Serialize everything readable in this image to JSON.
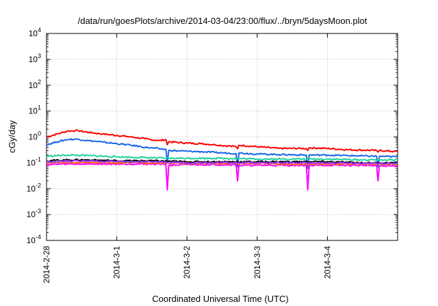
{
  "chart_data": {
    "type": "line",
    "title": "/data/run/goesPlots/archive/2014-03-04/23:00/flux/../bryn/5daysMoon.plot",
    "xlabel": "Coordinated Universal Time (UTC)",
    "ylabel": "cGy/day",
    "yscale": "log",
    "ylim": [
      0.0001,
      10000
    ],
    "xlim": [
      0,
      5
    ],
    "grid": true,
    "x_ticks": [
      {
        "x": 0,
        "label": "2014-2-28"
      },
      {
        "x": 1,
        "label": "2014-3-1"
      },
      {
        "x": 2,
        "label": "2014-3-2"
      },
      {
        "x": 3,
        "label": "2014-3-3"
      },
      {
        "x": 4,
        "label": "2014-3-4"
      }
    ],
    "y_ticks": [
      {
        "value": 0.0001,
        "base": "10",
        "exp": "-4"
      },
      {
        "value": 0.001,
        "base": "10",
        "exp": "-3"
      },
      {
        "value": 0.01,
        "base": "10",
        "exp": "-2"
      },
      {
        "value": 0.1,
        "base": "10",
        "exp": "-1"
      },
      {
        "value": 1,
        "base": "10",
        "exp": "0"
      },
      {
        "value": 10,
        "base": "10",
        "exp": "1"
      },
      {
        "value": 100,
        "base": "10",
        "exp": "2"
      },
      {
        "value": 1000,
        "base": "10",
        "exp": "3"
      },
      {
        "value": 10000,
        "base": "10",
        "exp": "4"
      }
    ],
    "series": [
      {
        "color": "#ff0000",
        "points": [
          [
            0,
            1.0
          ],
          [
            0.15,
            1.3
          ],
          [
            0.3,
            1.7
          ],
          [
            0.45,
            1.75
          ],
          [
            0.6,
            1.5
          ],
          [
            0.8,
            1.3
          ],
          [
            1.0,
            1.15
          ],
          [
            1.2,
            1.0
          ],
          [
            1.4,
            0.85
          ],
          [
            1.6,
            0.72
          ],
          [
            1.7,
            0.8
          ],
          [
            1.72,
            0.5
          ],
          [
            1.74,
            0.65
          ],
          [
            2.0,
            0.58
          ],
          [
            2.2,
            0.55
          ],
          [
            2.4,
            0.5
          ],
          [
            2.7,
            0.42
          ],
          [
            2.72,
            0.35
          ],
          [
            2.74,
            0.48
          ],
          [
            3.0,
            0.42
          ],
          [
            3.3,
            0.36
          ],
          [
            3.7,
            0.36
          ],
          [
            3.72,
            0.3
          ],
          [
            3.74,
            0.38
          ],
          [
            4.0,
            0.36
          ],
          [
            4.3,
            0.32
          ],
          [
            4.7,
            0.3
          ],
          [
            4.72,
            0.26
          ],
          [
            4.74,
            0.3
          ],
          [
            5.0,
            0.27
          ]
        ]
      },
      {
        "color": "#1a66e6",
        "points": [
          [
            0,
            0.5
          ],
          [
            0.15,
            0.65
          ],
          [
            0.3,
            0.8
          ],
          [
            0.45,
            0.82
          ],
          [
            0.6,
            0.72
          ],
          [
            0.8,
            0.63
          ],
          [
            1.0,
            0.55
          ],
          [
            1.2,
            0.48
          ],
          [
            1.4,
            0.4
          ],
          [
            1.6,
            0.35
          ],
          [
            1.7,
            0.33
          ],
          [
            1.72,
            0.1
          ],
          [
            1.74,
            0.3
          ],
          [
            2.0,
            0.28
          ],
          [
            2.2,
            0.27
          ],
          [
            2.4,
            0.25
          ],
          [
            2.7,
            0.23
          ],
          [
            2.72,
            0.07
          ],
          [
            2.74,
            0.24
          ],
          [
            3.0,
            0.22
          ],
          [
            3.3,
            0.21
          ],
          [
            3.7,
            0.2
          ],
          [
            3.72,
            0.06
          ],
          [
            3.74,
            0.2
          ],
          [
            4.0,
            0.2
          ],
          [
            4.3,
            0.19
          ],
          [
            4.7,
            0.18
          ],
          [
            4.72,
            0.07
          ],
          [
            4.74,
            0.18
          ],
          [
            5.0,
            0.17
          ]
        ]
      },
      {
        "color": "#1fd19a",
        "points": [
          [
            0,
            0.18
          ],
          [
            0.3,
            0.2
          ],
          [
            0.6,
            0.19
          ],
          [
            1.0,
            0.17
          ],
          [
            1.4,
            0.16
          ],
          [
            1.7,
            0.15
          ],
          [
            2.0,
            0.15
          ],
          [
            2.5,
            0.15
          ],
          [
            3.0,
            0.14
          ],
          [
            3.5,
            0.14
          ],
          [
            4.0,
            0.14
          ],
          [
            4.5,
            0.13
          ],
          [
            5.0,
            0.13
          ]
        ]
      },
      {
        "color": "#000000",
        "points": [
          [
            0,
            0.12
          ],
          [
            0.3,
            0.13
          ],
          [
            0.6,
            0.13
          ],
          [
            1.0,
            0.12
          ],
          [
            1.5,
            0.12
          ],
          [
            2.0,
            0.11
          ],
          [
            2.5,
            0.11
          ],
          [
            3.0,
            0.11
          ],
          [
            3.5,
            0.11
          ],
          [
            4.0,
            0.11
          ],
          [
            4.5,
            0.1
          ],
          [
            5.0,
            0.1
          ]
        ]
      },
      {
        "color": "#ff00ff",
        "points": [
          [
            0,
            0.085
          ],
          [
            0.3,
            0.09
          ],
          [
            0.6,
            0.09
          ],
          [
            1.0,
            0.09
          ],
          [
            1.4,
            0.09
          ],
          [
            1.7,
            0.09
          ],
          [
            1.72,
            0.009
          ],
          [
            1.74,
            0.08
          ],
          [
            2.0,
            0.085
          ],
          [
            2.4,
            0.085
          ],
          [
            2.7,
            0.085
          ],
          [
            2.72,
            0.02
          ],
          [
            2.74,
            0.08
          ],
          [
            3.0,
            0.08
          ],
          [
            3.4,
            0.08
          ],
          [
            3.7,
            0.08
          ],
          [
            3.72,
            0.009
          ],
          [
            3.74,
            0.08
          ],
          [
            4.0,
            0.08
          ],
          [
            4.4,
            0.08
          ],
          [
            4.7,
            0.08
          ],
          [
            4.72,
            0.02
          ],
          [
            4.74,
            0.075
          ],
          [
            5.0,
            0.075
          ]
        ]
      },
      {
        "color": "#ff6a00",
        "points": [
          [
            0,
            0.1
          ],
          [
            0.5,
            0.105
          ],
          [
            1.0,
            0.1
          ],
          [
            1.5,
            0.1
          ],
          [
            2.0,
            0.095
          ],
          [
            2.5,
            0.095
          ],
          [
            3.0,
            0.095
          ],
          [
            3.5,
            0.09
          ],
          [
            4.0,
            0.09
          ],
          [
            4.5,
            0.09
          ],
          [
            5.0,
            0.085
          ]
        ]
      },
      {
        "color": "#9b30ff",
        "points": [
          [
            0,
            0.11
          ],
          [
            0.5,
            0.12
          ],
          [
            1.0,
            0.11
          ],
          [
            1.5,
            0.11
          ],
          [
            2.0,
            0.1
          ],
          [
            2.5,
            0.1
          ],
          [
            3.0,
            0.1
          ],
          [
            3.5,
            0.1
          ],
          [
            4.0,
            0.1
          ],
          [
            4.5,
            0.095
          ],
          [
            5.0,
            0.095
          ]
        ]
      }
    ]
  }
}
